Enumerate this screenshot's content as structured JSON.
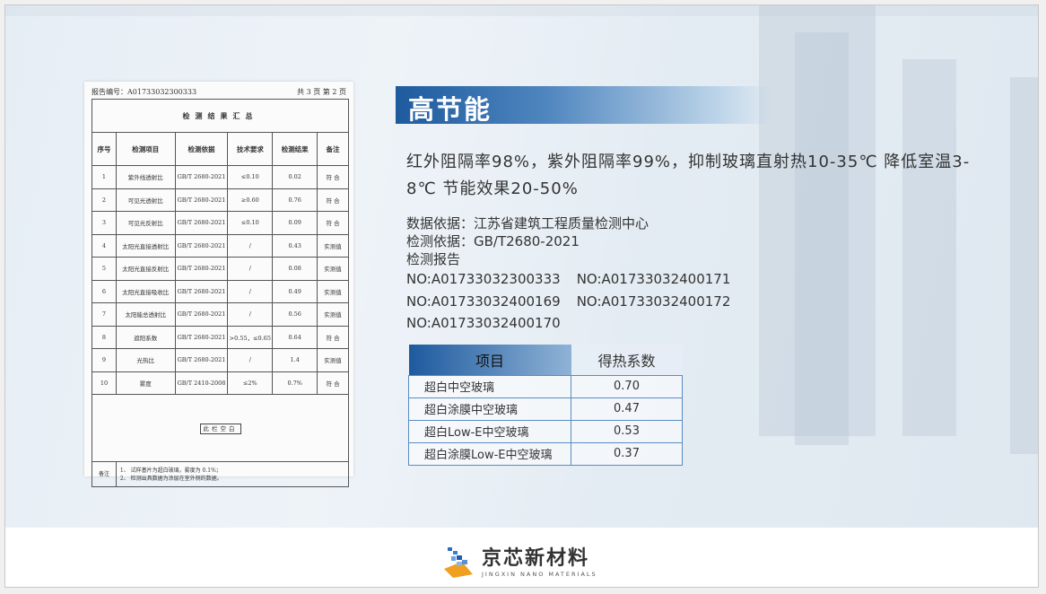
{
  "document": {
    "report_no": "报告编号：A01733032300333",
    "page_info": "共 3 页 第 2 页",
    "title": "检测结果汇总",
    "headers": [
      "序号",
      "检测项目",
      "检测依据",
      "技术要求",
      "检测结果",
      "备注"
    ],
    "rows": [
      [
        "1",
        "紫外线透射比",
        "GB/T 2680-2021",
        "≤0.10",
        "0.02",
        "符 合"
      ],
      [
        "2",
        "可见光透射比",
        "GB/T 2680-2021",
        "≥0.60",
        "0.76",
        "符 合"
      ],
      [
        "3",
        "可见光反射比",
        "GB/T 2680-2021",
        "≤0.10",
        "0.09",
        "符 合"
      ],
      [
        "4",
        "太阳光直接透射比",
        "GB/T 2680-2021",
        "/",
        "0.43",
        "实测值"
      ],
      [
        "5",
        "太阳光直接反射比",
        "GB/T 2680-2021",
        "/",
        "0.08",
        "实测值"
      ],
      [
        "6",
        "太阳光直接吸收比",
        "GB/T 2680-2021",
        "/",
        "0.49",
        "实测值"
      ],
      [
        "7",
        "太阳能总透射比",
        "GB/T 2680-2021",
        "/",
        "0.56",
        "实测值"
      ],
      [
        "8",
        "遮阳系数",
        "GB/T 2680-2021",
        ">0.55，≤0.65",
        "0.64",
        "符 合"
      ],
      [
        "9",
        "光热比",
        "GB/T 2680-2021",
        "/",
        "1.4",
        "实测值"
      ],
      [
        "10",
        "雾度",
        "GB/T 2410-2008",
        "≤2%",
        "0.7%",
        "符 合"
      ]
    ],
    "blank_stamp": "此栏空白",
    "notes_label": "备注",
    "notes": [
      "1、 试样基片为超白玻璃，雾度为 0.1%；",
      "2、 检测出具数据为涂层在室外侧的数据。"
    ]
  },
  "title": "高节能",
  "description": "红外阻隔率98%，紫外阻隔率99%，抑制玻璃直射热10-35℃ 降低室温3-8℃ 节能效果20-50%",
  "info": {
    "data_source": "数据依据：江苏省建筑工程质量检测中心",
    "test_basis": "检测依据：GB/T2680-2021",
    "report_label": "检测报告",
    "report_numbers": [
      [
        "NO:A01733032300333",
        "NO:A01733032400171"
      ],
      [
        "NO:A01733032400169",
        "NO:A01733032400172"
      ],
      [
        "NO:A01733032400170"
      ]
    ]
  },
  "gain_table": {
    "headers": [
      "项目",
      "得热系数"
    ],
    "rows": [
      [
        "超白中空玻璃",
        "0.70"
      ],
      [
        "超白涂膜中空玻璃",
        "0.47"
      ],
      [
        "超白Low-E中空玻璃",
        "0.53"
      ],
      [
        "超白涂膜Low-E中空玻璃",
        "0.37"
      ]
    ]
  },
  "logo": {
    "name": "京芯新材料",
    "subtitle": "JINGXIN NANO MATERIALS"
  },
  "colors": {
    "title_bar": "#1d5a9e",
    "table_border": "#5a8cc0"
  }
}
